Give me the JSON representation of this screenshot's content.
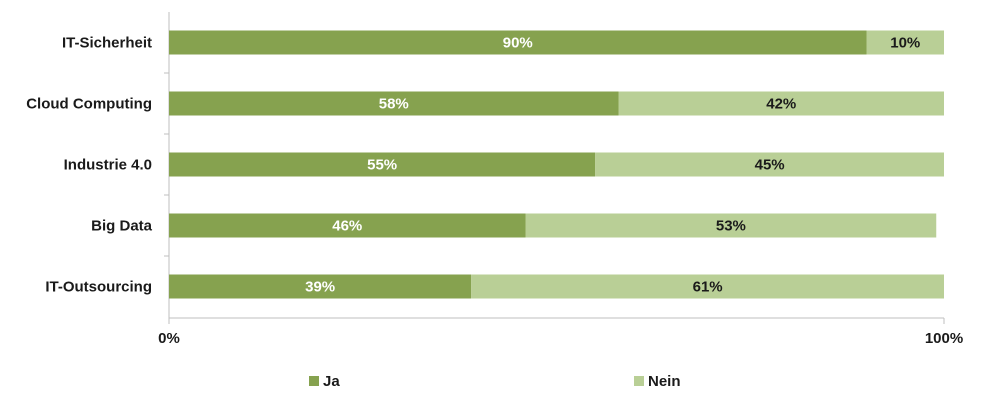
{
  "chart_data": {
    "type": "bar",
    "orientation": "horizontal",
    "stacked": "percent",
    "categories": [
      "IT-Sicherheit",
      "Cloud Computing",
      "Industrie 4.0",
      "Big Data",
      "IT-Outsourcing"
    ],
    "series": [
      {
        "name": "Ja",
        "values": [
          90,
          58,
          55,
          46,
          39
        ],
        "labels": [
          "90%",
          "58%",
          "55%",
          "46%",
          "39%"
        ],
        "color": "#86a24f"
      },
      {
        "name": "Nein",
        "values": [
          10,
          42,
          45,
          53,
          61
        ],
        "labels": [
          "10%",
          "42%",
          "45%",
          "53%",
          "61%"
        ],
        "color": "#b9cf96"
      }
    ],
    "x_ticks": [
      "0%",
      "100%"
    ],
    "xlim": [
      0,
      100
    ],
    "grid": false,
    "legend_position": "bottom"
  }
}
